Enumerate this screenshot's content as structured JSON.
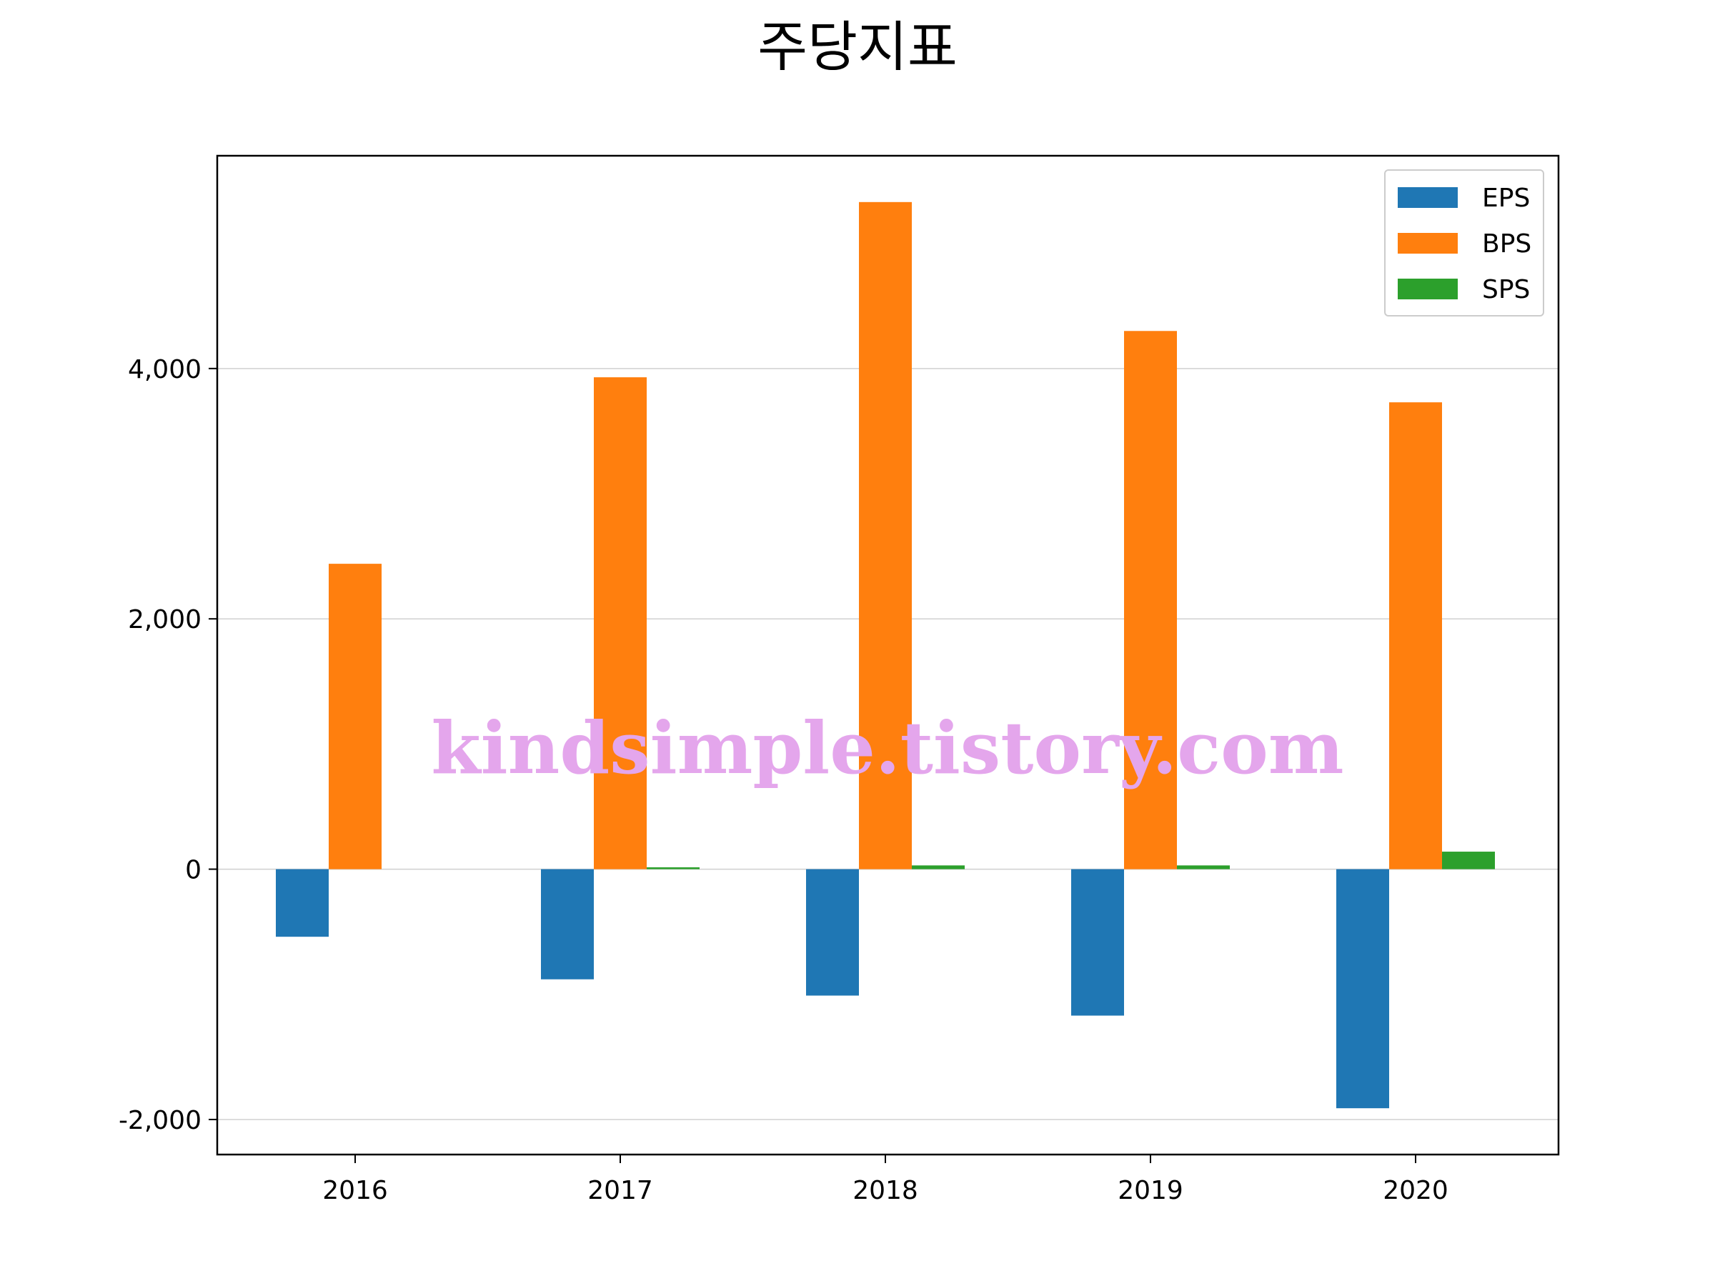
{
  "chart_data": {
    "type": "bar",
    "title": "주당지표",
    "categories": [
      "2016",
      "2017",
      "2018",
      "2019",
      "2020"
    ],
    "series": [
      {
        "name": "EPS",
        "color": "#1f77b4",
        "values": [
          -540,
          -880,
          -1010,
          -1170,
          -1910
        ]
      },
      {
        "name": "BPS",
        "color": "#ff7f0e",
        "values": [
          2440,
          3930,
          5330,
          4300,
          3730
        ]
      },
      {
        "name": "SPS",
        "color": "#2ca02c",
        "values": [
          null,
          15,
          30,
          30,
          140
        ]
      }
    ],
    "ylim": [
      -2280,
      5700
    ],
    "yticks": [
      -2000,
      0,
      2000,
      4000
    ],
    "ytick_labels": [
      "-2,000",
      "0",
      "2,000",
      "4,000"
    ],
    "grid": "y",
    "legend": "top-right"
  },
  "watermark": "kindsimple.tistory.com"
}
